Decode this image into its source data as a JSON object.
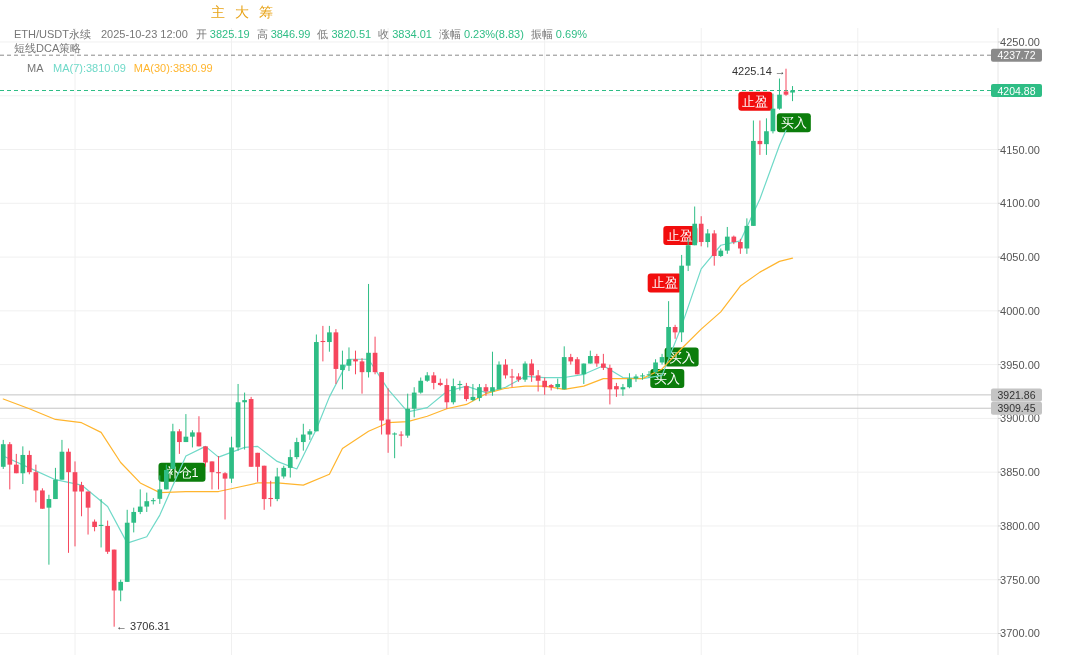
{
  "chart_data": {
    "type": "candlestick",
    "grid": true,
    "legend": "top left",
    "categories": [
      null,
      null,
      null,
      null,
      null,
      null,
      null,
      null,
      null,
      null,
      null,
      null,
      null,
      null,
      null,
      null,
      null,
      null,
      null,
      null,
      null,
      null,
      null,
      null,
      null,
      null,
      null,
      null,
      null,
      null,
      null,
      null,
      null,
      null,
      null,
      null,
      null,
      null,
      null,
      null,
      null,
      null,
      null,
      null,
      null,
      null,
      null,
      null,
      null,
      null,
      null,
      null,
      null,
      null,
      null,
      null,
      null,
      null,
      null,
      null,
      null,
      null,
      null,
      null,
      null,
      null,
      null,
      null,
      null,
      null,
      null,
      null,
      null,
      null,
      null,
      null,
      null,
      null,
      null,
      null,
      null,
      null,
      null,
      null,
      null,
      null,
      null,
      null,
      null,
      null,
      null,
      null,
      null,
      null,
      null,
      null,
      null,
      null,
      null,
      null,
      null,
      null,
      null,
      null,
      null,
      null,
      null,
      null,
      null,
      null,
      null,
      null,
      null,
      null,
      null,
      null,
      null,
      null,
      null,
      null,
      null,
      null,
      null,
      null,
      null,
      null,
      null,
      null,
      null,
      null,
      null,
      null,
      null,
      null,
      null,
      null,
      null,
      null,
      null,
      null,
      null,
      null,
      null,
      null,
      null,
      null,
      null,
      null,
      null,
      null,
      null,
      null,
      null
    ],
    "ohlc": [
      [
        3855,
        3880,
        3853,
        3876
      ],
      [
        3876,
        3878,
        3834,
        3857
      ],
      [
        3857,
        3867,
        3849,
        3849
      ],
      [
        3849,
        3874,
        3839,
        3866
      ],
      [
        3866,
        3870,
        3848,
        3850
      ],
      [
        3850,
        3857,
        3822,
        3833
      ],
      [
        3833,
        3835,
        3816,
        3816
      ],
      [
        3817,
        3829,
        3764,
        3825
      ],
      [
        3825,
        3854,
        3825,
        3843
      ],
      [
        3843,
        3880,
        3843,
        3869
      ],
      [
        3869,
        3872,
        3775,
        3850
      ],
      [
        3850,
        3860,
        3781,
        3832
      ],
      [
        3838,
        3841,
        3809,
        3832
      ],
      [
        3832,
        3832,
        3792,
        3817
      ],
      [
        3804,
        3806,
        3795,
        3799
      ],
      [
        3800,
        3825,
        3780,
        3801
      ],
      [
        3800,
        3805,
        3774,
        3776
      ],
      [
        3778,
        3778,
        3706.31,
        3740
      ],
      [
        3740,
        3750,
        3730,
        3748
      ],
      [
        3748,
        3815,
        3748,
        3803
      ],
      [
        3803,
        3817,
        3794,
        3813
      ],
      [
        3813,
        3834,
        3811,
        3818
      ],
      [
        3818,
        3831,
        3813,
        3823
      ],
      [
        3823,
        3826,
        3820,
        3824
      ],
      [
        3825.19,
        3846.99,
        3820.51,
        3834.01
      ],
      [
        3834,
        3857,
        3834,
        3852
      ],
      [
        3853,
        3895,
        3853,
        3888
      ],
      [
        3888,
        3890,
        3867,
        3878
      ],
      [
        3878,
        3904,
        3878,
        3883
      ],
      [
        3883,
        3889,
        3873,
        3887
      ],
      [
        3887,
        3902,
        3874,
        3874
      ],
      [
        3874,
        3874,
        3855,
        3859
      ],
      [
        3860,
        3860,
        3834,
        3850
      ],
      [
        3850,
        3865,
        3834,
        3849
      ],
      [
        3849,
        3850,
        3806,
        3844
      ],
      [
        3844,
        3883,
        3840,
        3873
      ],
      [
        3873,
        3932,
        3870,
        3915
      ],
      [
        3915,
        3924,
        3871,
        3917
      ],
      [
        3918,
        3920,
        3855,
        3855
      ],
      [
        3868,
        3868,
        3841,
        3855
      ],
      [
        3856,
        3856,
        3815,
        3825
      ],
      [
        3826,
        3842,
        3818,
        3825
      ],
      [
        3825,
        3854,
        3823,
        3846
      ],
      [
        3846,
        3856,
        3844,
        3854
      ],
      [
        3854,
        3871,
        3845,
        3864
      ],
      [
        3864,
        3882,
        3862,
        3878
      ],
      [
        3878,
        3895,
        3870,
        3885
      ],
      [
        3885,
        3890,
        3880,
        3888
      ],
      [
        3888,
        3978,
        3888,
        3971
      ],
      [
        3972,
        3986,
        3953,
        3971
      ],
      [
        3971,
        3986,
        3962,
        3980
      ],
      [
        3980,
        3983,
        3932,
        3946
      ],
      [
        3945,
        3963,
        3927,
        3950
      ],
      [
        3949,
        3966,
        3944,
        3955
      ],
      [
        3955,
        3963,
        3941,
        3953
      ],
      [
        3953,
        3956,
        3923,
        3943
      ],
      [
        3943,
        4025,
        3938,
        3961
      ],
      [
        3961,
        3976,
        3941,
        3943
      ],
      [
        3943,
        3943,
        3885,
        3898
      ],
      [
        3899,
        3928,
        3868,
        3885
      ],
      [
        3885,
        3887,
        3863,
        3886
      ],
      [
        3885,
        3888,
        3874,
        3884
      ],
      [
        3884,
        3923,
        3882,
        3909
      ],
      [
        3909,
        3929,
        3901,
        3924
      ],
      [
        3924,
        3938,
        3923,
        3935
      ],
      [
        3935,
        3943,
        3934,
        3940
      ],
      [
        3940,
        3943,
        3927,
        3933
      ],
      [
        3933,
        3937,
        3930,
        3931
      ],
      [
        3931,
        3937,
        3909,
        3915
      ],
      [
        3915,
        3937,
        3913,
        3930
      ],
      [
        3931,
        3935,
        3926,
        3932
      ],
      [
        3930,
        3933,
        3916,
        3918
      ],
      [
        3917,
        3932,
        3916,
        3920
      ],
      [
        3919,
        3932,
        3916,
        3929
      ],
      [
        3929,
        3932,
        3921,
        3925
      ],
      [
        3925,
        3962,
        3921,
        3929
      ],
      [
        3927,
        3953,
        3927,
        3950
      ],
      [
        3950,
        3955,
        3937,
        3940
      ],
      [
        3939,
        3946,
        3929,
        3938
      ],
      [
        3939,
        3942,
        3934,
        3936
      ],
      [
        3936,
        3953,
        3934,
        3951
      ],
      [
        3951,
        3955,
        3934,
        3940
      ],
      [
        3940,
        3945,
        3925,
        3935
      ],
      [
        3935,
        3938,
        3922,
        3929
      ],
      [
        3931,
        3932,
        3926,
        3929
      ],
      [
        3929,
        3937,
        3927,
        3932
      ],
      [
        3927,
        3967,
        3927,
        3957
      ],
      [
        3957,
        3960,
        3950,
        3953
      ],
      [
        3955,
        3957,
        3941,
        3941
      ],
      [
        3941,
        3951,
        3932,
        3951
      ],
      [
        3951,
        3963,
        3951,
        3958
      ],
      [
        3958,
        3960,
        3948,
        3951
      ],
      [
        3951,
        3960,
        3945,
        3947
      ],
      [
        3947,
        3950,
        3913,
        3927
      ],
      [
        3930,
        3933,
        3920,
        3927
      ],
      [
        3927,
        3932,
        3921,
        3929
      ],
      [
        3929,
        3942,
        3928,
        3937
      ],
      [
        3937,
        3941,
        3934,
        3939
      ],
      [
        3939,
        3942,
        3936,
        3940
      ],
      [
        3940,
        3944,
        3938,
        3941
      ],
      [
        3943,
        3955,
        3941,
        3952
      ],
      [
        3952,
        3960,
        3950,
        3957
      ],
      [
        3957,
        4009,
        3955,
        3985
      ],
      [
        3985,
        3987,
        3974,
        3980
      ],
      [
        3980,
        4052,
        3971,
        4042
      ],
      [
        4042,
        4067,
        4037,
        4061
      ],
      [
        4061,
        4097,
        4061,
        4081
      ],
      [
        4081,
        4088,
        4060,
        4064
      ],
      [
        4064,
        4076,
        4059,
        4072
      ],
      [
        4072,
        4075,
        4042,
        4051
      ],
      [
        4051,
        4058,
        4050,
        4056
      ],
      [
        4056,
        4078,
        4053,
        4069
      ],
      [
        4069,
        4070,
        4062,
        4064
      ],
      [
        4064,
        4067,
        4053,
        4058
      ],
      [
        4058,
        4086,
        4053,
        4079
      ],
      [
        4079,
        4177,
        4079,
        4158
      ],
      [
        4158,
        4177,
        4145,
        4155
      ],
      [
        4155,
        4179,
        4145,
        4167
      ],
      [
        4167,
        4202,
        4165,
        4188
      ],
      [
        4188,
        4216,
        4187,
        4201
      ],
      [
        4204,
        4225.14,
        4200,
        4201
      ],
      [
        4203,
        4209,
        4195,
        4204.88
      ],
      null,
      null,
      null,
      null,
      null,
      null,
      null,
      null,
      null,
      null,
      null,
      null,
      null,
      null,
      null,
      null,
      null,
      null,
      null,
      null,
      null,
      null,
      null,
      null,
      null,
      null,
      null,
      null,
      null,
      null,
      null
    ],
    "colors": [
      "#2ebd85",
      "#f6465d",
      "#f6465d",
      "#2ebd85",
      "#f6465d",
      "#f6465d",
      "#f6465d",
      "#2ebd85",
      "#2ebd85",
      "#2ebd85",
      "#f6465d",
      "#f6465d",
      "#f6465d",
      "#f6465d",
      "#f6465d",
      "#2ebd85",
      "#f6465d",
      "#f6465d",
      "#2ebd85",
      "#2ebd85",
      "#2ebd85",
      "#2ebd85",
      "#2ebd85",
      "#2ebd85",
      "#2ebd85",
      "#2ebd85",
      "#2ebd85",
      "#f6465d",
      "#2ebd85",
      "#2ebd85",
      "#f6465d",
      "#f6465d",
      "#f6465d",
      "#f6465d",
      "#f6465d",
      "#2ebd85",
      "#2ebd85",
      "#2ebd85",
      "#f6465d",
      "#f6465d",
      "#f6465d",
      "#f6465d",
      "#2ebd85",
      "#2ebd85",
      "#2ebd85",
      "#2ebd85",
      "#2ebd85",
      "#2ebd85",
      "#2ebd85",
      "#f6465d",
      "#2ebd85",
      "#f6465d",
      "#2ebd85",
      "#2ebd85",
      "#f6465d",
      "#f6465d",
      "#2ebd85",
      "#f6465d",
      "#f6465d",
      "#f6465d",
      "#2ebd85",
      "#f6465d",
      "#2ebd85",
      "#2ebd85",
      "#2ebd85",
      "#2ebd85",
      "#f6465d",
      "#f6465d",
      "#f6465d",
      "#2ebd85",
      "#2ebd85",
      "#f6465d",
      "#2ebd85",
      "#2ebd85",
      "#f6465d",
      "#2ebd85",
      "#2ebd85",
      "#f6465d",
      "#f6465d",
      "#f6465d",
      "#2ebd85",
      "#f6465d",
      "#f6465d",
      "#f6465d",
      "#f6465d",
      "#2ebd85",
      "#2ebd85",
      "#f6465d",
      "#f6465d",
      "#2ebd85",
      "#2ebd85",
      "#f6465d",
      "#f6465d",
      "#f6465d",
      "#f6465d",
      "#2ebd85",
      "#2ebd85",
      "#2ebd85",
      "#2ebd85",
      "#2ebd85",
      "#2ebd85",
      "#2ebd85",
      "#2ebd85",
      "#f6465d",
      "#2ebd85",
      "#2ebd85",
      "#2ebd85",
      "#f6465d",
      "#2ebd85",
      "#f6465d",
      "#2ebd85",
      "#2ebd85",
      "#f6465d",
      "#f6465d",
      "#2ebd85",
      "#2ebd85",
      "#f6465d",
      "#2ebd85",
      "#2ebd85",
      "#2ebd85",
      "#f6465d",
      "#2ebd85",
      null,
      null,
      null,
      null,
      null,
      null,
      null,
      null,
      null,
      null,
      null,
      null,
      null,
      null,
      null,
      null,
      null,
      null,
      null,
      null,
      null,
      null,
      null,
      null,
      null,
      null,
      null,
      null,
      null,
      null,
      null
    ],
    "series": [
      {
        "type": "line",
        "name": "MA(7):3810.09",
        "color": "#6fd9c8",
        "values": [
          3865,
          null,
          null,
          null,
          3854,
          null,
          null,
          null,
          3843,
          null,
          null,
          null,
          3838,
          null,
          null,
          null,
          3818,
          null,
          null,
          3784,
          null,
          null,
          3790,
          null,
          3810.09,
          null,
          null,
          null,
          3865,
          null,
          null,
          3874,
          null,
          3864,
          null,
          null,
          null,
          3873,
          null,
          3874,
          null,
          null,
          3860,
          null,
          null,
          3853,
          null,
          null,
          3890,
          null,
          3920,
          null,
          null,
          3955,
          null,
          null,
          3955,
          null,
          null,
          3927,
          null,
          null,
          3906,
          null,
          null,
          3910,
          null,
          null,
          3925,
          null,
          null,
          3930,
          null,
          null,
          3924,
          null,
          null,
          3929,
          null,
          null,
          3939,
          null,
          null,
          3938,
          null,
          null,
          3938,
          null,
          null,
          3941,
          null,
          null,
          3949,
          null,
          null,
          3938,
          null,
          null,
          3937,
          null,
          null,
          3940,
          null,
          null,
          3986,
          null,
          null,
          4039,
          null,
          null,
          4061,
          null,
          null,
          4065,
          null,
          null,
          4104,
          null,
          null,
          4154,
          4168,
          null,
          null,
          null,
          null,
          null,
          null,
          null,
          null,
          null,
          null,
          null,
          null,
          null,
          null,
          null,
          null,
          null,
          null,
          null,
          null,
          null,
          null,
          null,
          null,
          null,
          null,
          null,
          null,
          null,
          null,
          null,
          null
        ]
      },
      {
        "type": "line",
        "name": "MA(30):3830.99",
        "color": "#ffb52e",
        "values": [
          3918,
          null,
          null,
          null,
          3909,
          null,
          null,
          null,
          3899,
          null,
          null,
          null,
          3896,
          null,
          null,
          3887,
          null,
          null,
          3859,
          null,
          null,
          3840,
          null,
          null,
          3830.99,
          null,
          null,
          null,
          3832,
          null,
          null,
          null,
          null,
          3832,
          null,
          null,
          3836,
          null,
          null,
          3840,
          null,
          null,
          3840,
          null,
          null,
          null,
          3838,
          null,
          null,
          null,
          3848,
          null,
          3872,
          null,
          null,
          null,
          3888,
          null,
          null,
          3896,
          null,
          null,
          3897,
          null,
          null,
          3902,
          null,
          null,
          3909,
          null,
          null,
          3913,
          null,
          null,
          3923,
          null,
          null,
          3928,
          null,
          null,
          3930,
          null,
          null,
          3930,
          null,
          null,
          3927,
          null,
          null,
          3930,
          null,
          null,
          3937,
          null,
          null,
          3937,
          null,
          null,
          3937,
          null,
          null,
          3946,
          null,
          null,
          3965,
          null,
          null,
          3983,
          null,
          null,
          3999,
          null,
          null,
          4023,
          null,
          null,
          4036,
          null,
          null,
          4046,
          null,
          4049,
          null,
          null,
          null,
          null,
          null,
          null,
          null,
          null,
          null,
          null,
          null,
          null,
          null,
          null,
          null,
          null,
          null,
          null,
          null,
          null,
          null,
          null,
          null,
          null,
          null,
          null,
          null,
          null,
          null,
          null,
          null
        ]
      }
    ],
    "ylim": [
      3680,
      4263
    ],
    "yticks": [
      {
        "value": 3700,
        "label": "3700.00"
      },
      {
        "value": 3750,
        "label": "3750.00"
      },
      {
        "value": 3800,
        "label": "3800.00"
      },
      {
        "value": 3850,
        "label": "3850.00"
      },
      {
        "value": 3900,
        "label": "3900.00"
      },
      {
        "value": 3950,
        "label": "3950.00"
      },
      {
        "value": 4000,
        "label": "4000.00"
      },
      {
        "value": 4050,
        "label": "4050.00"
      },
      {
        "value": 4100,
        "label": "4100.00"
      },
      {
        "value": 4150,
        "label": "4150.00"
      },
      {
        "value": 4200,
        "label": null
      },
      {
        "value": 4250,
        "label": "4250.00"
      }
    ],
    "ref_lines": [
      {
        "axis": "y",
        "value": 4237.72,
        "label": "4237.72",
        "color": "#8a8a8a",
        "line_style": "dashed"
      },
      {
        "axis": "y",
        "value": 4204.88,
        "label": "4204.88",
        "color": "#2ebd85",
        "line_style": "dashed"
      },
      {
        "axis": "y",
        "value": 3921.86,
        "label": "3921.86",
        "color": "#c4c4c4",
        "line_style": "solid"
      },
      {
        "axis": "y",
        "value": 3909.45,
        "label": "3909.45",
        "color": "#c4c4c4",
        "line_style": "solid"
      }
    ],
    "annotations": [
      "ETH/USDT永续",
      "2025-10-23 12:00",
      "开",
      "3825.19",
      "高",
      "3846.99",
      "低",
      "3820.51",
      "收",
      "3834.01",
      "涨幅",
      "0.23%(8.83)",
      "振幅",
      "0.69%",
      "短线DCA策略",
      "MA",
      "主",
      "大",
      "筹",
      "← 3706.31",
      "4225.14 →",
      {
        "text": "补仓1",
        "y": 3850
      },
      {
        "text": "买入",
        "y": 3937
      },
      {
        "text": "买入",
        "y": 3957
      },
      {
        "text": "止盈",
        "y": 4026
      },
      {
        "text": "止盈",
        "y": 4070
      },
      {
        "text": "止盈",
        "y": 4195
      },
      {
        "text": "买入",
        "y": 4175
      }
    ]
  }
}
